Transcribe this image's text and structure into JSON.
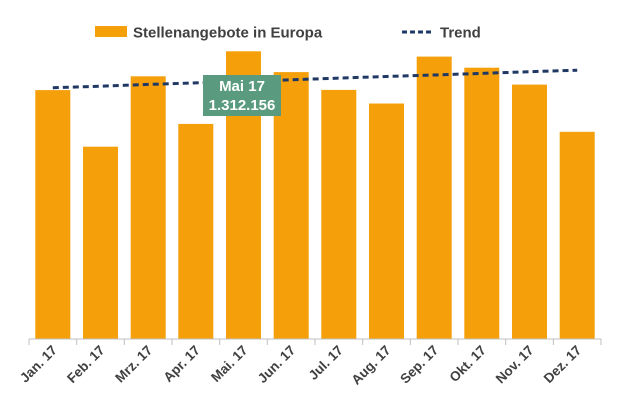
{
  "chart_data": {
    "type": "bar",
    "categories": [
      "Jan. 17",
      "Feb. 17",
      "Mrz. 17",
      "Apr. 17",
      "Mai. 17",
      "Jun. 17",
      "Jul. 17",
      "Aug. 17",
      "Sep. 17",
      "Okt. 17",
      "Nov. 17",
      "Dez. 17"
    ],
    "series": [
      {
        "name": "Stellenangebote in Europa",
        "type": "bar",
        "color": "#f5a00a",
        "values": [
          1135000,
          877000,
          1198000,
          981000,
          1312156,
          1217000,
          1136000,
          1074000,
          1288000,
          1237000,
          1160000,
          945000
        ]
      },
      {
        "name": "Trend",
        "type": "line",
        "style": "dashed",
        "color": "#1f3864",
        "values": [
          1146000,
          1153000,
          1161000,
          1168000,
          1175000,
          1182000,
          1190000,
          1197000,
          1204000,
          1211000,
          1219000,
          1226000
        ]
      }
    ],
    "ylim": [
      0,
      1400000
    ],
    "grid": false,
    "legend": "top",
    "annotation": {
      "category": "Mai. 17",
      "line1": "Mai 17",
      "line2": "1.312.156",
      "color": "#5a9b7f"
    }
  }
}
